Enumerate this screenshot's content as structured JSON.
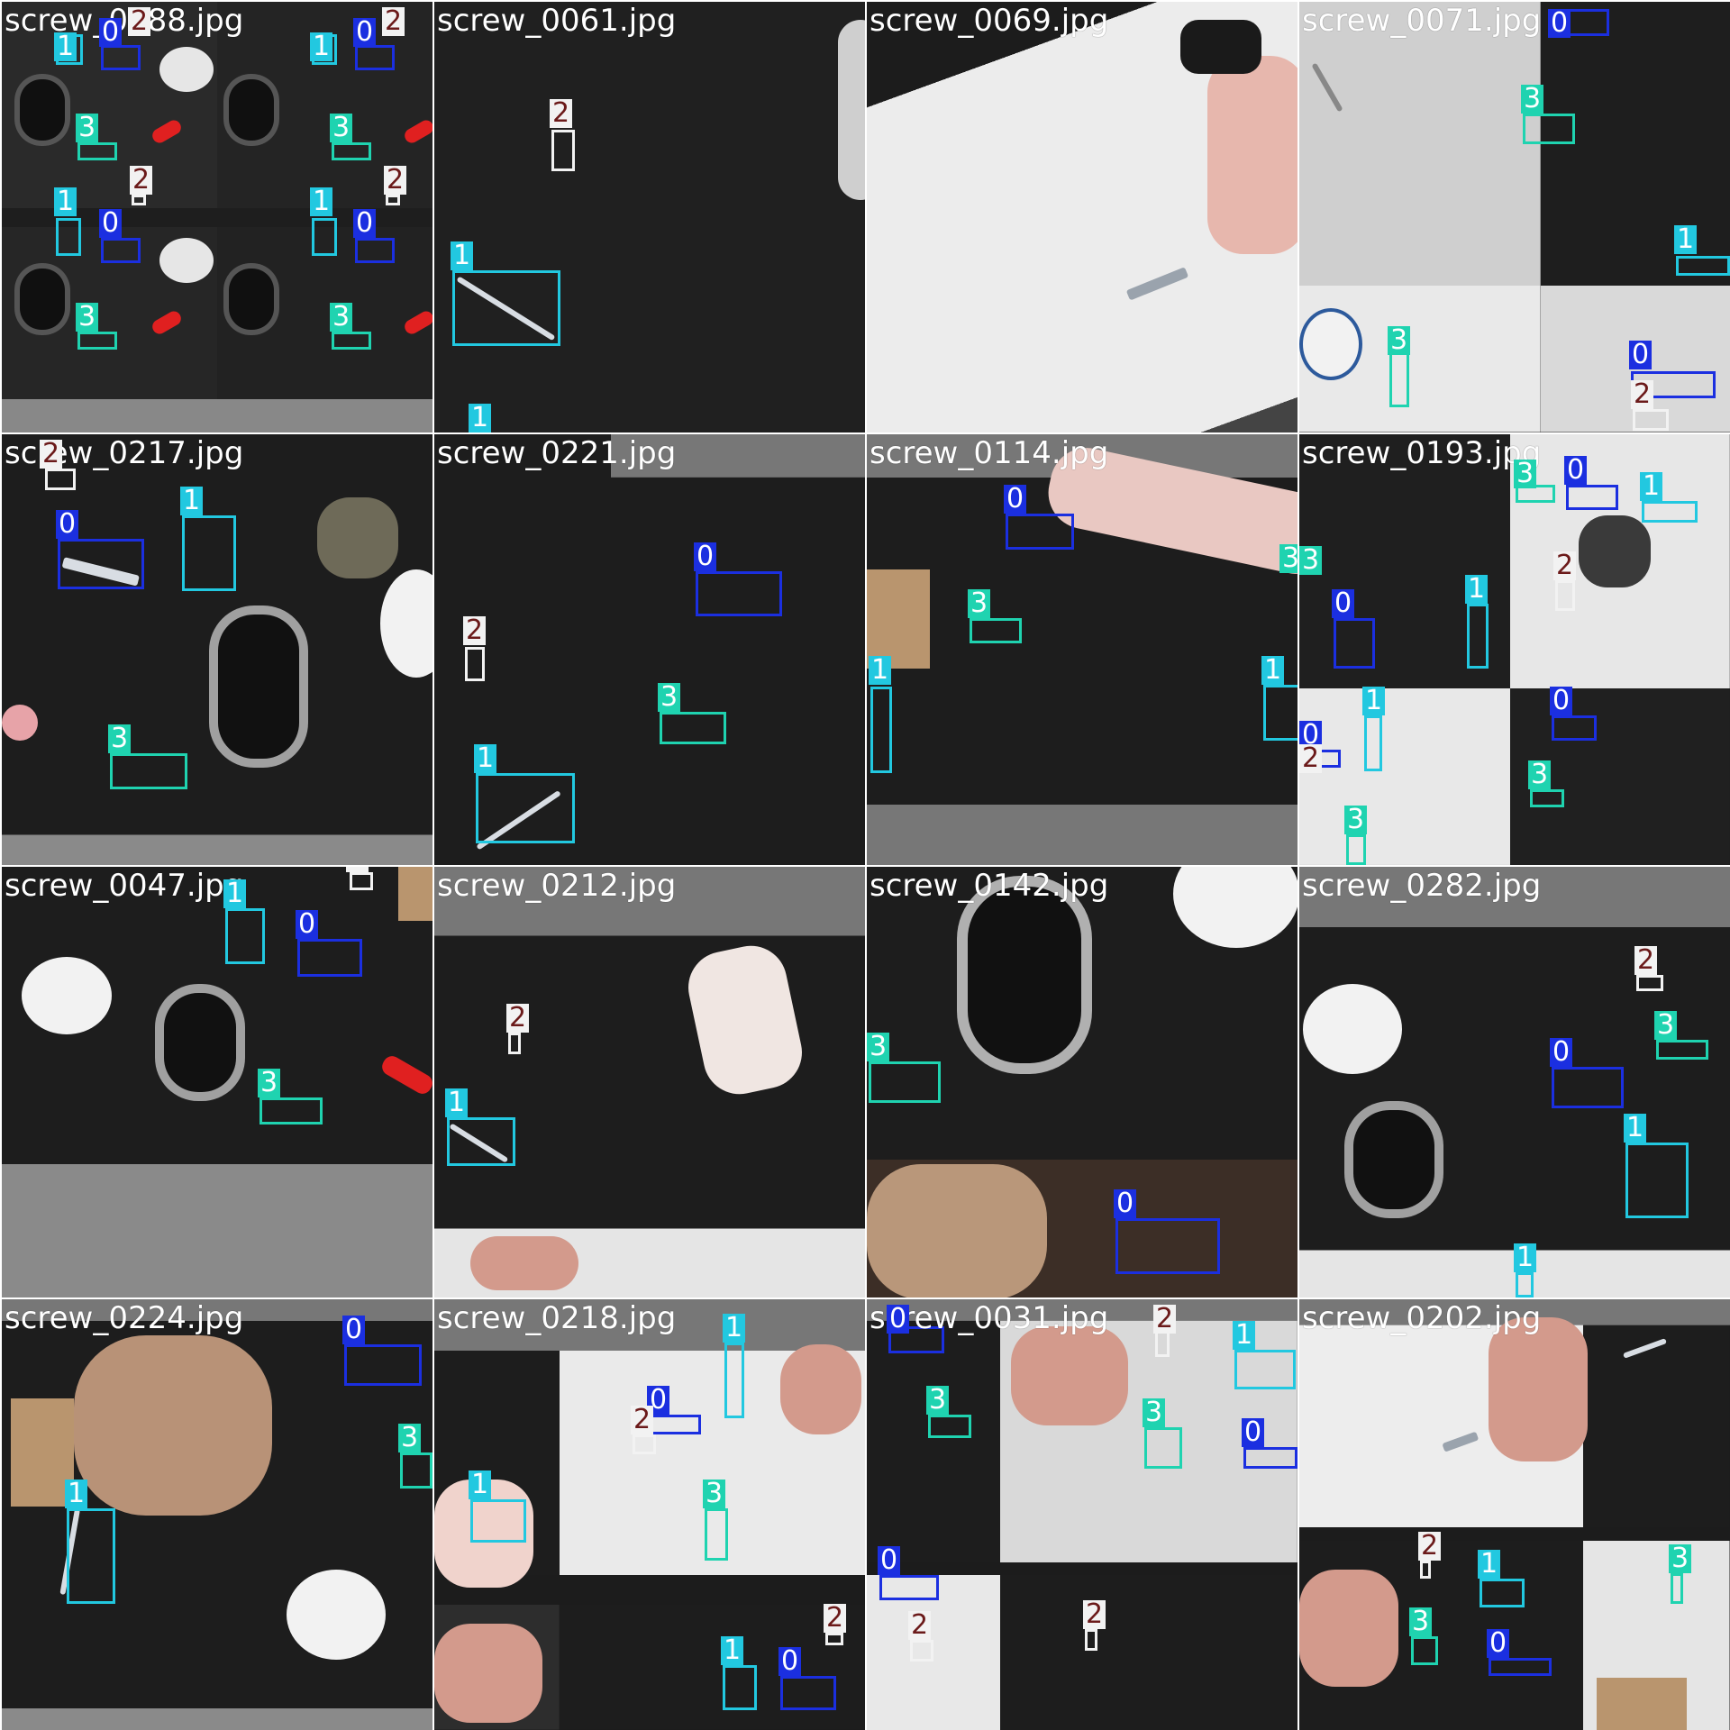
{
  "tiles": [
    {
      "filename": "screw_0288.jpg"
    },
    {
      "filename": "screw_0061.jpg"
    },
    {
      "filename": "screw_0069.jpg"
    },
    {
      "filename": "screw_0071.jpg"
    },
    {
      "filename": "screw_0217.jpg"
    },
    {
      "filename": "screw_0221.jpg"
    },
    {
      "filename": "screw_0114.jpg"
    },
    {
      "filename": "screw_0193.jpg"
    },
    {
      "filename": "screw_0047.jpg"
    },
    {
      "filename": "screw_0212.jpg"
    },
    {
      "filename": "screw_0142.jpg"
    },
    {
      "filename": "screw_0282.jpg"
    },
    {
      "filename": "screw_0224.jpg"
    },
    {
      "filename": "screw_0218.jpg"
    },
    {
      "filename": "screw_0031.jpg"
    },
    {
      "filename": "screw_0202.jpg"
    }
  ],
  "class_labels": {
    "c0": "0",
    "c1": "1",
    "c2": "2",
    "c3": "3"
  },
  "class_colors": {
    "c0": "#1b2fe0",
    "c1": "#22c8e0",
    "c2": "#f2f2f2",
    "c3": "#1fd3b0"
  }
}
